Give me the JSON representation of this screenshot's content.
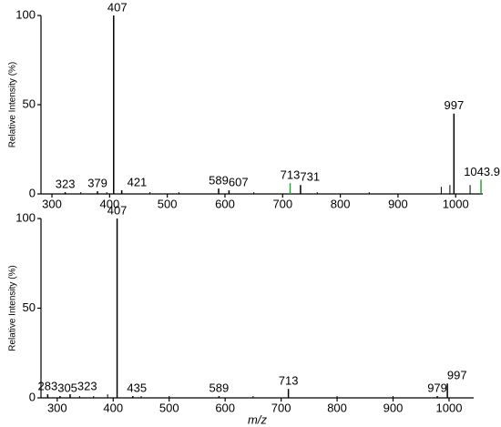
{
  "chart_data": [
    {
      "type": "spectrum",
      "ylabel": "Relative Intensity (%)",
      "x": [
        323,
        379,
        407,
        421,
        589,
        607,
        713,
        731,
        997,
        1043.9
      ],
      "values": [
        1,
        1.5,
        100,
        2,
        3,
        2,
        6,
        5,
        45,
        8
      ],
      "colors": [
        "#000000",
        "#000000",
        "#000000",
        "#000000",
        "#000000",
        "#000000",
        "#2e9e3e",
        "#000000",
        "#000000",
        "#2e9e3e"
      ],
      "label_colors": [
        "#000000",
        "#000000",
        "#000000",
        "#000000",
        "#000000",
        "#000000",
        "#000000",
        "#000000",
        "#000000",
        "#000000"
      ],
      "minor_x": [
        350,
        395,
        470,
        520,
        650,
        760,
        850,
        975,
        990,
        1025
      ],
      "minor_values": [
        1,
        1,
        1,
        1,
        1,
        1,
        1,
        4,
        5,
        5
      ],
      "xlim": [
        281,
        1047
      ],
      "ylim": [
        0,
        100
      ],
      "xticks": [
        300,
        400,
        500,
        600,
        700,
        800,
        900,
        1000
      ],
      "yticks": [
        0,
        50,
        100
      ]
    },
    {
      "type": "spectrum",
      "ylabel": "Relative Intensity (%)",
      "xlabel": "m/z",
      "x": [
        283,
        305,
        323,
        407,
        435,
        589,
        713,
        979,
        997
      ],
      "values": [
        2,
        1,
        2,
        100,
        1,
        1,
        5,
        1,
        8
      ],
      "colors": [
        "#000000",
        "#000000",
        "#000000",
        "#000000",
        "#000000",
        "#000000",
        "#000000",
        "#000000",
        "#000000"
      ],
      "label_colors": [
        "#e8231d",
        "#000000",
        "#000000",
        "#e8231d",
        "#000000",
        "#000000",
        "#000000",
        "#000000",
        "#000000"
      ],
      "minor_x": [
        340,
        365,
        390,
        450,
        500,
        650,
        800,
        900
      ],
      "minor_values": [
        1,
        1,
        2,
        1,
        1,
        1,
        1,
        1
      ],
      "xlim": [
        271,
        1044
      ],
      "ylim": [
        0,
        100
      ],
      "xticks": [
        300,
        400,
        500,
        600,
        700,
        800,
        900,
        1000
      ],
      "yticks": [
        0,
        50,
        100
      ]
    }
  ]
}
